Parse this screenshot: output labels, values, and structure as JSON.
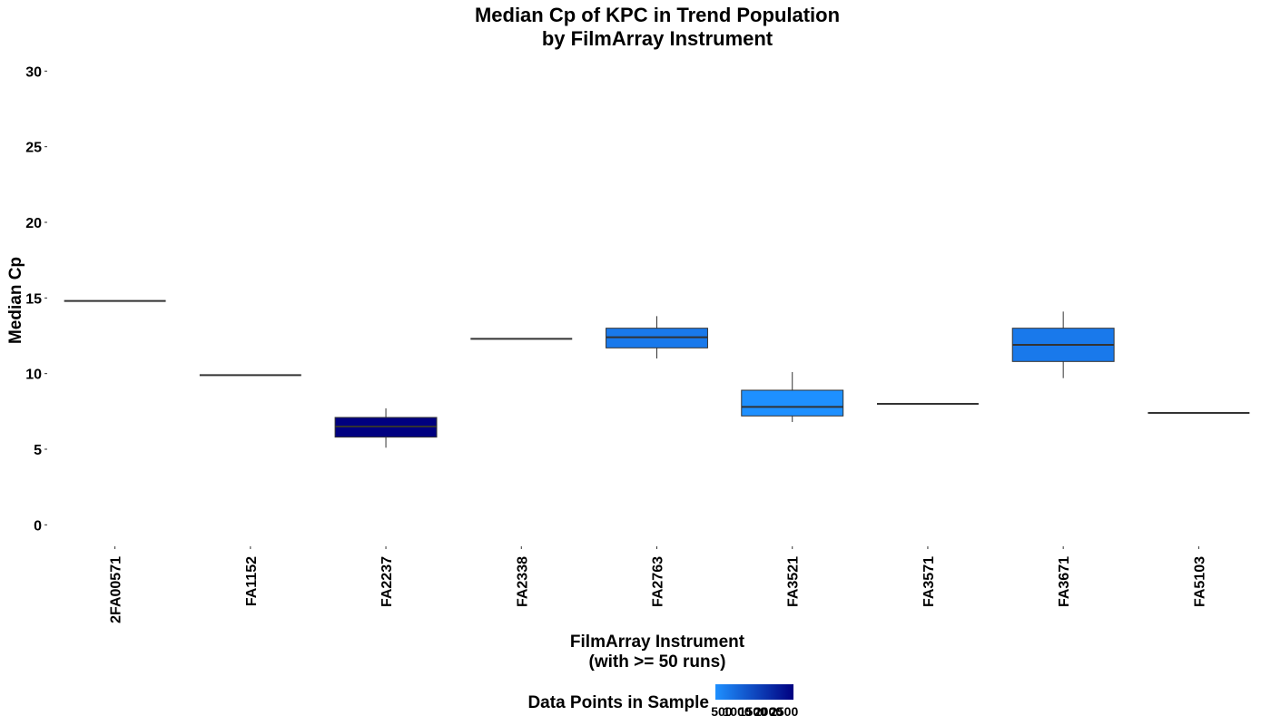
{
  "chart_data": {
    "type": "box",
    "title": [
      "Median Cp of KPC in Trend Population",
      "by FilmArray Instrument"
    ],
    "xlabel": [
      "FilmArray Instrument",
      "(with >= 50 runs)"
    ],
    "ylabel": "Median Cp",
    "ylim": [
      -1.0,
      30.5
    ],
    "yticks": [
      0,
      5,
      10,
      15,
      20,
      25,
      30
    ],
    "grid": false,
    "legend": {
      "title": "Data Points in Sample",
      "position": "bottom",
      "labels": [
        "500",
        "1000",
        "1500",
        "2000",
        "2500"
      ],
      "label_values": [
        500,
        1000,
        1500,
        2000,
        2500
      ],
      "range": [
        300,
        2800
      ],
      "color_low": "#1e90ff",
      "color_high": "#000080"
    },
    "categories": [
      "2FA00571",
      "FA1152",
      "FA2237",
      "FA2338",
      "FA2763",
      "FA3521",
      "FA3571",
      "FA3671",
      "FA5103"
    ],
    "boxes": [
      {
        "category": "2FA00571",
        "min": 14.8,
        "q1": 14.8,
        "median": 14.8,
        "q3": 14.8,
        "max": 14.8,
        "count": 500
      },
      {
        "category": "FA1152",
        "min": 9.9,
        "q1": 9.9,
        "median": 9.9,
        "q3": 9.9,
        "max": 9.9,
        "count": 500
      },
      {
        "category": "FA2237",
        "min": 5.1,
        "q1": 5.8,
        "median": 6.5,
        "q3": 7.1,
        "max": 7.7,
        "count": 2800
      },
      {
        "category": "FA2338",
        "min": 12.3,
        "q1": 12.3,
        "median": 12.3,
        "q3": 12.3,
        "max": 12.3,
        "count": 500
      },
      {
        "category": "FA2763",
        "min": 11.0,
        "q1": 11.7,
        "median": 12.4,
        "q3": 13.0,
        "max": 13.8,
        "count": 700
      },
      {
        "category": "FA3521",
        "min": 6.8,
        "q1": 7.2,
        "median": 7.8,
        "q3": 8.9,
        "max": 10.1,
        "count": 300
      },
      {
        "category": "FA3571",
        "min": 8.0,
        "q1": 8.0,
        "median": 8.0,
        "q3": 8.0,
        "max": 8.0,
        "count": 500
      },
      {
        "category": "FA3671",
        "min": 9.7,
        "q1": 10.8,
        "median": 11.9,
        "q3": 13.0,
        "max": 14.1,
        "count": 700
      },
      {
        "category": "FA5103",
        "min": 7.4,
        "q1": 7.4,
        "median": 7.4,
        "q3": 7.4,
        "max": 7.4,
        "count": 500
      }
    ]
  }
}
